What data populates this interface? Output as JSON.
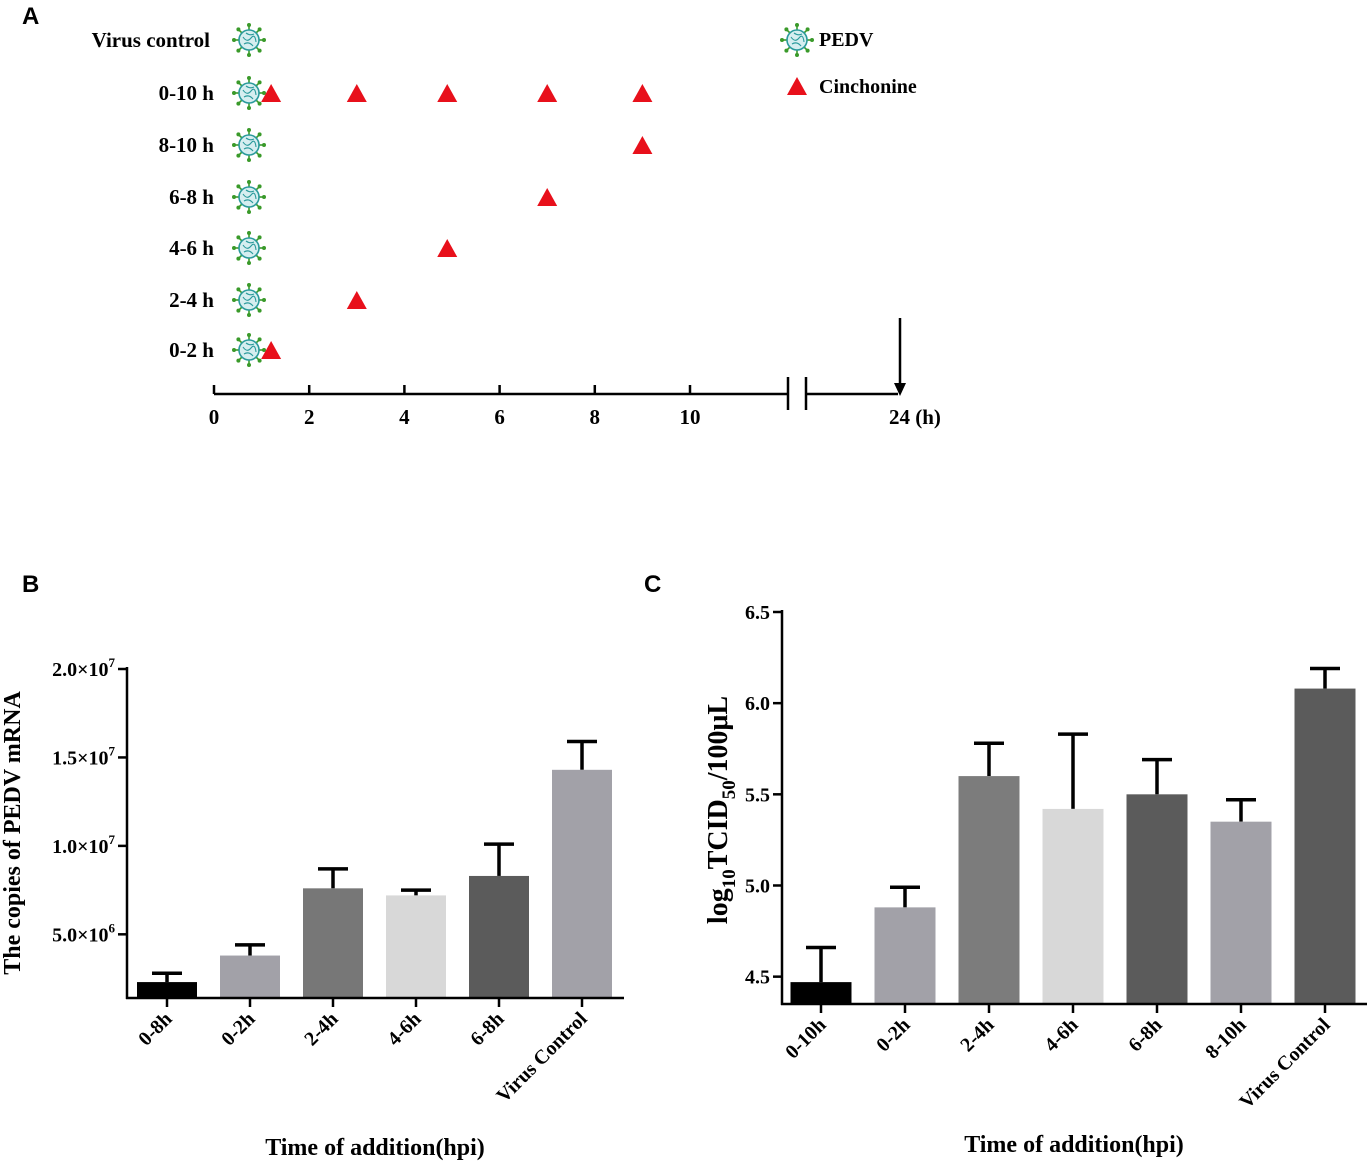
{
  "panels": {
    "A": {
      "letter": "A",
      "rows": [
        {
          "label": "Virus control",
          "treatments": []
        },
        {
          "label": "0-10 h",
          "treatments": [
            1.2,
            3,
            4.9,
            7,
            9
          ]
        },
        {
          "label": "8-10 h",
          "treatments": [
            9
          ]
        },
        {
          "label": "6-8 h",
          "treatments": [
            7
          ]
        },
        {
          "label": "4-6 h",
          "treatments": [
            4.9
          ]
        },
        {
          "label": "2-4 h",
          "treatments": [
            3
          ]
        },
        {
          "label": "0-2 h",
          "treatments": [
            1.2
          ]
        }
      ],
      "axis_ticks": [
        "0",
        "2",
        "4",
        "6",
        "8",
        "10"
      ],
      "axis_end_label": "24 (h)",
      "legend": {
        "virus": "PEDV",
        "drug": "Cinchonine"
      },
      "colors": {
        "triangle": "#e8101b",
        "virus": "#2a9a9c",
        "spike": "#3a9a2a"
      },
      "virus_icon": "coronavirus-icon",
      "drug_icon": "red-triangle-icon"
    },
    "B": {
      "letter": "B"
    },
    "C": {
      "letter": "C"
    }
  },
  "chart_data": [
    {
      "type": "bar",
      "panel": "B",
      "categories": [
        "0-8h",
        "0-2h",
        "2-4h",
        "4-6h",
        "6-8h",
        "Virus Control"
      ],
      "values": [
        2300000,
        3800000,
        7600000,
        7200000,
        8300000,
        14300000
      ],
      "errors": [
        500000,
        600000,
        1100000,
        300000,
        1800000,
        1600000
      ],
      "colors": [
        "#000000",
        "#a2a1a8",
        "#777777",
        "#d8d8d8",
        "#5b5b5b",
        "#a2a1a8"
      ],
      "ylim": [
        1400000,
        20000000
      ],
      "yticks": [
        {
          "value": 5000000,
          "mant": "5.0",
          "exp": "6"
        },
        {
          "value": 10000000,
          "mant": "1.0",
          "exp": "7"
        },
        {
          "value": 15000000,
          "mant": "1.5",
          "exp": "7"
        },
        {
          "value": 20000000,
          "mant": "2.0",
          "exp": "7"
        }
      ],
      "ylabel": "The copies of PEDV mRNA",
      "xlabel": "Time of addition(hpi)",
      "title": ""
    },
    {
      "type": "bar",
      "panel": "C",
      "categories": [
        "0-10h",
        "0-2h",
        "2-4h",
        "4-6h",
        "6-8h",
        "8-10h",
        "Virus Control"
      ],
      "values": [
        4.47,
        4.88,
        5.6,
        5.42,
        5.5,
        5.35,
        6.08
      ],
      "errors": [
        0.19,
        0.11,
        0.18,
        0.41,
        0.19,
        0.12,
        0.11
      ],
      "colors": [
        "#000000",
        "#a2a1a8",
        "#7c7c7c",
        "#d8d8d8",
        "#5b5b5b",
        "#a2a1a8",
        "#5b5b5b"
      ],
      "ylim": [
        4.35,
        6.5
      ],
      "yticks": [
        {
          "value": 4.5,
          "label": "4.5"
        },
        {
          "value": 5.0,
          "label": "5.0"
        },
        {
          "value": 5.5,
          "label": "5.5"
        },
        {
          "value": 6.0,
          "label": "6.0"
        },
        {
          "value": 6.5,
          "label": "6.5"
        }
      ],
      "ylabel": {
        "pre": "log",
        "sub1": "10",
        "mid": "TCID",
        "sub2": "50",
        "post": "/100μL"
      },
      "xlabel": "Time of addition(hpi)",
      "title": ""
    }
  ]
}
